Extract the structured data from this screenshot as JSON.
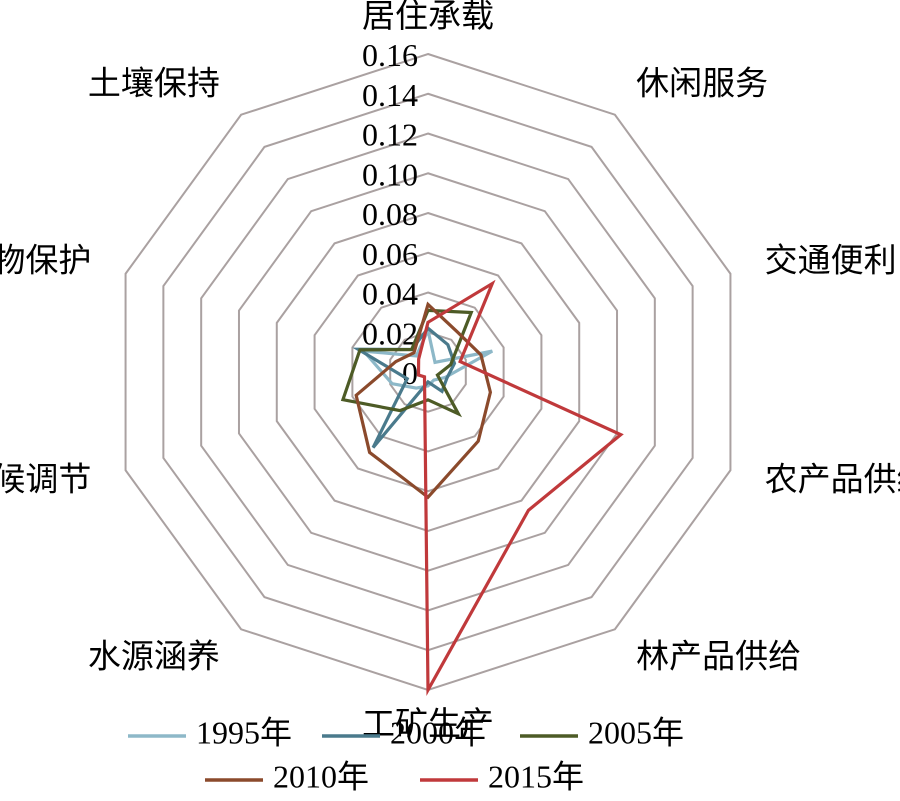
{
  "chart_data": {
    "type": "radar",
    "title": "",
    "r_range": [
      0,
      0.16
    ],
    "ticks": [
      "0",
      "0.02",
      "0.04",
      "0.06",
      "0.08",
      "0.10",
      "0.12",
      "0.14",
      "0.16"
    ],
    "tick_values": [
      0,
      0.02,
      0.04,
      0.06,
      0.08,
      0.1,
      0.12,
      0.14,
      0.16
    ],
    "categories": [
      "居住承载",
      "休闲服务",
      "交通便利",
      "农产品供给",
      "林产品供给",
      "工矿生产",
      "水源涵养",
      "气候调节",
      "生物保护",
      "土壤保持"
    ],
    "legend_position": "bottom",
    "grid": true,
    "series": [
      {
        "name": "1995年",
        "color": "#8db8c8",
        "values": [
          0.021,
          0.006,
          0.034,
          0.009,
          0.005,
          0.007,
          0.01,
          0.019,
          0.034,
          0.01
        ]
      },
      {
        "name": "2000年",
        "color": "#4a7a8c",
        "values": [
          0.022,
          0.017,
          0.014,
          0.01,
          0.012,
          0.005,
          0.047,
          0.011,
          0.037,
          0.014
        ]
      },
      {
        "name": "2005年",
        "color": "#4d5b26",
        "values": [
          0.031,
          0.037,
          0.012,
          0.005,
          0.026,
          0.014,
          0.024,
          0.045,
          0.036,
          0.014
        ]
      },
      {
        "name": "2010年",
        "color": "#8b4a2c",
        "values": [
          0.034,
          0.025,
          0.028,
          0.033,
          0.043,
          0.063,
          0.05,
          0.038,
          0.017,
          0.012
        ]
      },
      {
        "name": "2015年",
        "color": "#c0393b",
        "values": [
          0.025,
          0.055,
          0.017,
          0.102,
          0.086,
          0.16,
          0.003,
          0.005,
          0.005,
          0.008
        ]
      }
    ]
  }
}
